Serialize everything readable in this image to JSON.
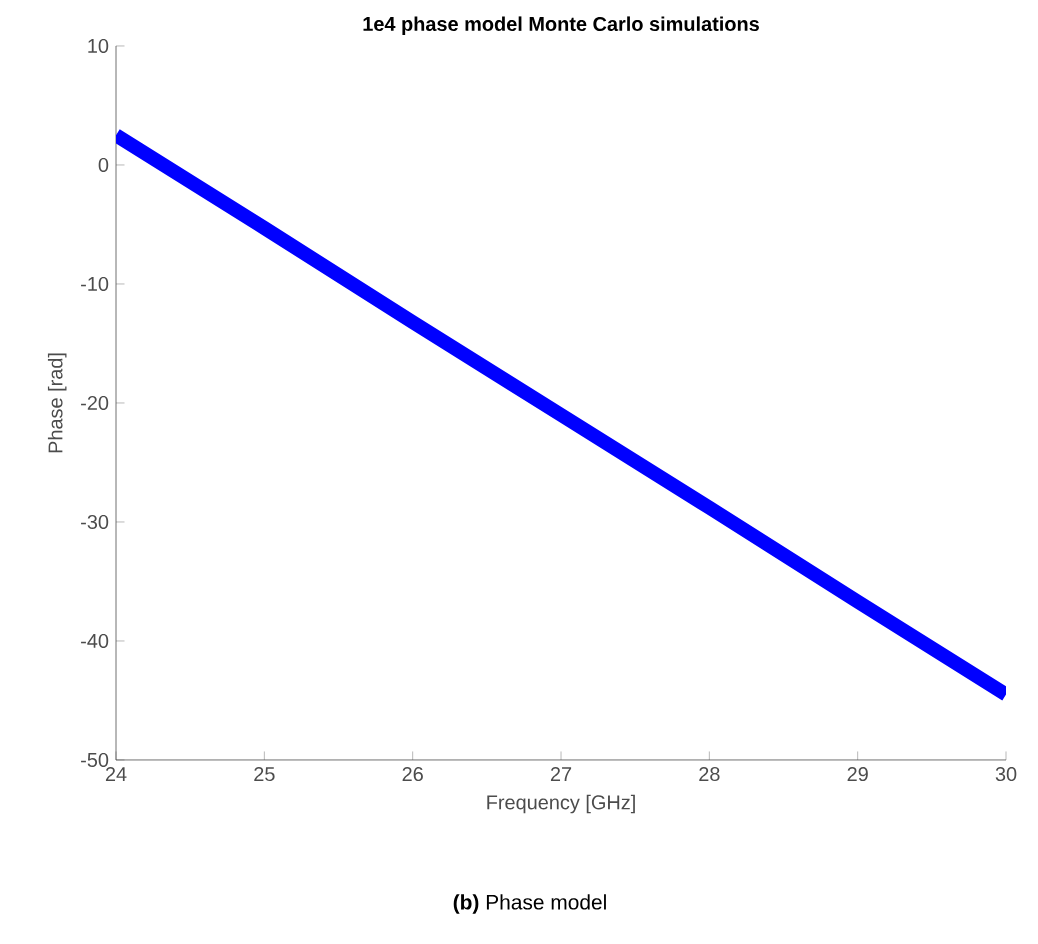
{
  "chart_data": {
    "type": "line",
    "title": "1e4 phase model Monte Carlo simulations",
    "xlabel": "Frequency [GHz]",
    "ylabel": "Phase [rad]",
    "annotations": [
      "**(b)** Phase model"
    ],
    "x": [
      24,
      25,
      26,
      27,
      28,
      29,
      30
    ],
    "series": [
      {
        "color": "#0000ff",
        "values": [
          2.5,
          -5.3,
          -13.2,
          -21.0,
          -28.8,
          -36.7,
          -44.5
        ]
      }
    ],
    "xlim": [
      24,
      30
    ],
    "ylim": [
      -50,
      10
    ],
    "xticks": [
      24,
      25,
      26,
      27,
      28,
      29,
      30
    ],
    "yticks": [
      -50,
      -40,
      -30,
      -20,
      -10,
      0,
      10
    ],
    "grid": false,
    "marker": "none",
    "line_style": "solid"
  }
}
